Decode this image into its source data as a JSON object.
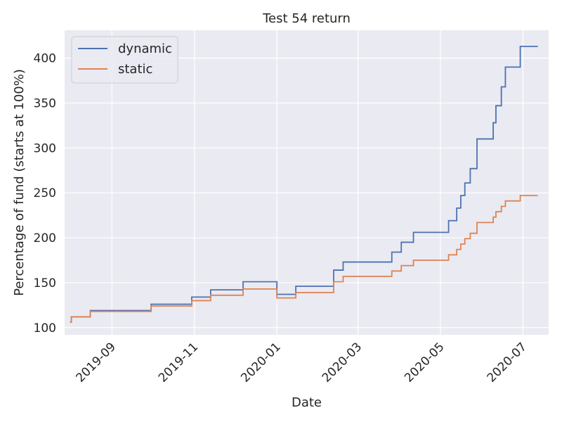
{
  "chart_data": {
    "type": "line",
    "title": "Test 54 return",
    "xlabel": "Date",
    "ylabel": "Percentage of fund (starts at 100%)",
    "x_tick_labels": [
      "2019-09",
      "2019-11",
      "2020-01",
      "2020-03",
      "2020-05",
      "2020-07"
    ],
    "x_tick_dates": [
      "2019-09-01",
      "2019-11-01",
      "2020-01-01",
      "2020-03-01",
      "2020-05-01",
      "2020-07-01"
    ],
    "xlim": [
      "2019-07-28",
      "2020-07-20"
    ],
    "y_ticks": [
      100,
      150,
      200,
      250,
      300,
      350,
      400
    ],
    "ylim": [
      92,
      431
    ],
    "grid": true,
    "legend_position": "top-left",
    "colors": {
      "background": "#eaeaf2",
      "grid": "#ffffff",
      "dynamic": "#4c72b0",
      "static": "#dd8452"
    },
    "series": [
      {
        "name": "dynamic",
        "step": "post",
        "points": [
          [
            "2019-08-01",
            106
          ],
          [
            "2019-08-02",
            112
          ],
          [
            "2019-08-16",
            119
          ],
          [
            "2019-09-30",
            126
          ],
          [
            "2019-10-30",
            134
          ],
          [
            "2019-11-13",
            142
          ],
          [
            "2019-12-07",
            151
          ],
          [
            "2020-01-01",
            137
          ],
          [
            "2020-01-15",
            146
          ],
          [
            "2020-02-12",
            164
          ],
          [
            "2020-02-19",
            173
          ],
          [
            "2020-03-26",
            184
          ],
          [
            "2020-04-02",
            195
          ],
          [
            "2020-04-11",
            206
          ],
          [
            "2020-05-07",
            219
          ],
          [
            "2020-05-13",
            233
          ],
          [
            "2020-05-16",
            247
          ],
          [
            "2020-05-19",
            261
          ],
          [
            "2020-05-23",
            277
          ],
          [
            "2020-05-28",
            310
          ],
          [
            "2020-06-09",
            328
          ],
          [
            "2020-06-11",
            347
          ],
          [
            "2020-06-15",
            368
          ],
          [
            "2020-06-18",
            390
          ],
          [
            "2020-06-29",
            413
          ],
          [
            "2020-07-12",
            413
          ]
        ]
      },
      {
        "name": "static",
        "step": "post",
        "points": [
          [
            "2019-08-01",
            106
          ],
          [
            "2019-08-02",
            112
          ],
          [
            "2019-08-16",
            118
          ],
          [
            "2019-09-30",
            124
          ],
          [
            "2019-10-30",
            130
          ],
          [
            "2019-11-13",
            136
          ],
          [
            "2019-12-07",
            143
          ],
          [
            "2020-01-01",
            133
          ],
          [
            "2020-01-15",
            139
          ],
          [
            "2020-02-12",
            151
          ],
          [
            "2020-02-19",
            157
          ],
          [
            "2020-03-26",
            163
          ],
          [
            "2020-04-02",
            169
          ],
          [
            "2020-04-11",
            175
          ],
          [
            "2020-05-07",
            181
          ],
          [
            "2020-05-13",
            187
          ],
          [
            "2020-05-16",
            193
          ],
          [
            "2020-05-19",
            199
          ],
          [
            "2020-05-23",
            205
          ],
          [
            "2020-05-28",
            217
          ],
          [
            "2020-06-09",
            223
          ],
          [
            "2020-06-11",
            229
          ],
          [
            "2020-06-15",
            235
          ],
          [
            "2020-06-18",
            241
          ],
          [
            "2020-06-29",
            247
          ],
          [
            "2020-07-12",
            247
          ]
        ]
      }
    ]
  }
}
